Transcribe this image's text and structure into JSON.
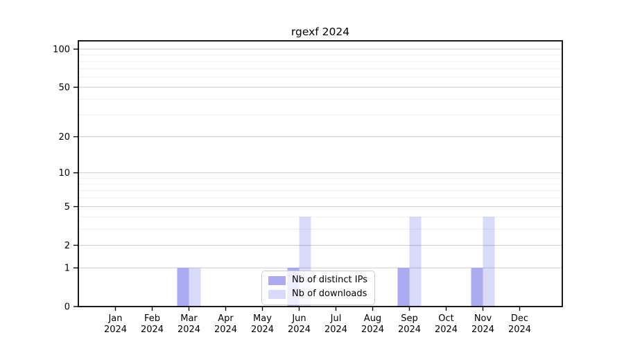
{
  "figure": {
    "background": "#ffffff"
  },
  "chart_data": {
    "type": "bar",
    "title": "rgexf 2024",
    "categories": [
      "Jan 2024",
      "Feb 2024",
      "Mar 2024",
      "Apr 2024",
      "May 2024",
      "Jun 2024",
      "Jul 2024",
      "Aug 2024",
      "Sep 2024",
      "Oct 2024",
      "Nov 2024",
      "Dec 2024"
    ],
    "x_tick_months": [
      "Jan",
      "Feb",
      "Mar",
      "Apr",
      "May",
      "Jun",
      "Jul",
      "Aug",
      "Sep",
      "Oct",
      "Nov",
      "Dec"
    ],
    "x_tick_year": "2024",
    "series": [
      {
        "name": "Nb of distinct IPs",
        "fill": "rgba(102,102,232,0.55)",
        "color_hex": "#a9a9f2",
        "values": [
          0,
          0,
          1,
          0,
          0,
          1,
          0,
          0,
          1,
          0,
          1,
          0
        ]
      },
      {
        "name": "Nb of downloads",
        "fill": "rgba(102,102,232,0.25)",
        "color_hex": "#d9d9f9",
        "values": [
          0,
          0,
          1,
          0,
          0,
          4,
          0,
          0,
          4,
          0,
          4,
          0
        ]
      }
    ],
    "y_axis": {
      "scale": "log1p",
      "ticks": [
        0,
        1,
        2,
        5,
        10,
        20,
        50,
        100
      ],
      "minor_gridlines": [
        3,
        4,
        6,
        7,
        8,
        9,
        30,
        40,
        60,
        70,
        80,
        90
      ],
      "max": 116
    },
    "grid": {
      "major_color": "#cccccc",
      "minor_color": "#ededed"
    },
    "legend": {
      "position": "lower center",
      "entries": [
        "Nb of distinct IPs",
        "Nb of downloads"
      ]
    }
  }
}
